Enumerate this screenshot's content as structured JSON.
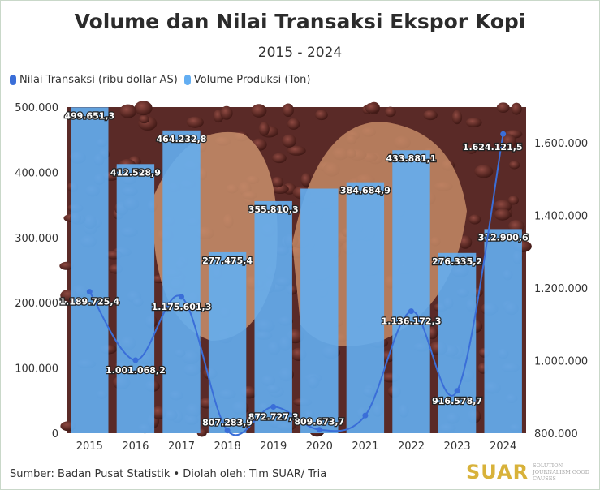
{
  "header": {
    "title": "Volume dan Nilai Transaksi Ekspor Kopi",
    "subtitle": "2015 - 2024"
  },
  "legend": {
    "line_label": "Nilai Transaksi (ribu dollar AS)",
    "bar_label": "Volume Produksi (Ton)"
  },
  "footer": {
    "source": "Sumber: Badan Pusat Statistik • Diolah oleh: Tim SUAR/ Tria",
    "logo_text": "SUAR",
    "logo_tagline": "SOLUTION JOURNALISM GOOD CAUSES"
  },
  "colors": {
    "bar": "#63aef2",
    "line": "#3a6ed8",
    "background_photo": "coffee beans held in hands"
  },
  "chart_data": {
    "type": "bar",
    "categories": [
      "2015",
      "2016",
      "2017",
      "2018",
      "2019",
      "2020",
      "2021",
      "2022",
      "2023",
      "2024"
    ],
    "series": [
      {
        "name": "Volume Produksi (Ton)",
        "type": "bar",
        "axis": "left",
        "values": [
          499651.3,
          412528.9,
          464232.8,
          277475.4,
          355810.3,
          375000,
          384684.9,
          433881.1,
          276335.2,
          312900.6
        ],
        "labels": [
          "499.651,3",
          "412.528,9",
          "464.232,8",
          "277.475,4",
          "355.810,3",
          "",
          "384.684,9",
          "433.881,1",
          "276.335,2",
          "312.900,6"
        ]
      },
      {
        "name": "Nilai Transaksi (ribu dollar AS)",
        "type": "line",
        "axis": "right",
        "values": [
          1189725.4,
          1001068.2,
          1175601.3,
          807283.9,
          872727.3,
          809673.7,
          849000,
          1136172.3,
          916578.7,
          1624121.5
        ],
        "labels": [
          "1.189.725,4",
          "1.001.068,2",
          "1.175.601,3",
          "807.283,9",
          "872.727,3",
          "809.673,7",
          "",
          "1.136.172,3",
          "916.578,7",
          "1.624.121,5"
        ]
      }
    ],
    "y_left": {
      "min": 0,
      "max": 500000,
      "ticks": [
        "0",
        "100.000",
        "200.000",
        "300.000",
        "400.000",
        "500.000"
      ]
    },
    "y_right": {
      "min": 800000,
      "max": 1600000,
      "ticks": [
        "800.000",
        "1.000.000",
        "1.200.000",
        "1.400.000",
        "1.600.000"
      ]
    },
    "legend_position": "top-left",
    "grid": false
  }
}
